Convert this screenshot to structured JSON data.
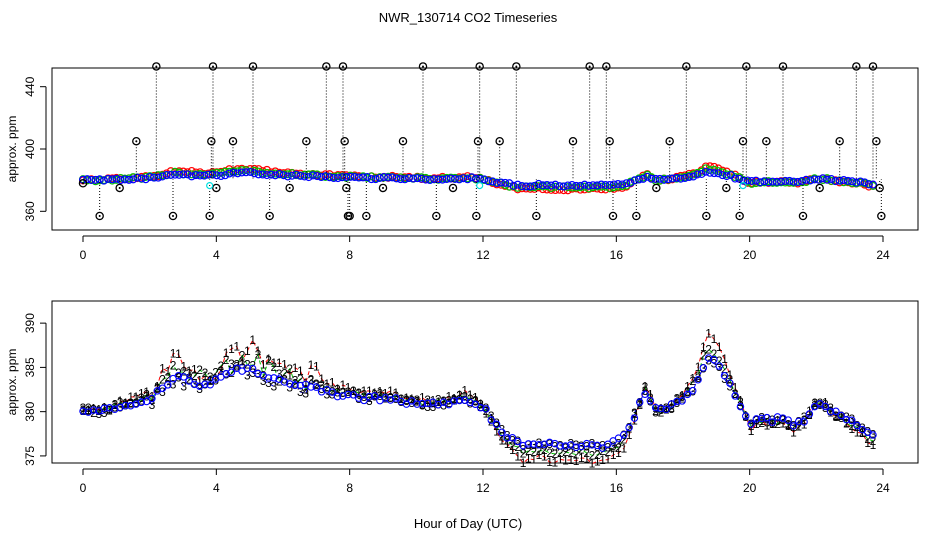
{
  "chart_data": {
    "title": "NWR_130714  CO2 Timeseries",
    "xlabel": "Hour of Day (UTC)",
    "colors": {
      "series1": "#ff0000",
      "series2": "#00c000",
      "series3": "#0000ff",
      "outlier": "#000000",
      "cyan": "#00e0e0"
    },
    "panels": [
      {
        "type": "scatter",
        "ylabel": "approx. ppm",
        "xlim": [
          0,
          24
        ],
        "ylim": [
          348,
          452
        ],
        "x_ticks": [
          "0",
          "4",
          "8",
          "12",
          "16",
          "20",
          "24"
        ],
        "y_ticks": [
          "360",
          "400",
          "440"
        ],
        "outlier_points": [
          [
            0.0,
            378
          ],
          [
            0.5,
            357
          ],
          [
            1.1,
            375
          ],
          [
            1.6,
            405
          ],
          [
            2.2,
            453
          ],
          [
            2.7,
            357
          ],
          [
            3.8,
            357
          ],
          [
            3.85,
            405
          ],
          [
            3.9,
            453
          ],
          [
            4.0,
            375
          ],
          [
            4.5,
            405
          ],
          [
            5.1,
            453
          ],
          [
            5.6,
            357
          ],
          [
            6.2,
            375
          ],
          [
            6.7,
            405
          ],
          [
            7.3,
            453
          ],
          [
            7.8,
            453
          ],
          [
            7.85,
            405
          ],
          [
            7.9,
            375
          ],
          [
            7.95,
            357
          ],
          [
            8.0,
            357
          ],
          [
            8.5,
            357
          ],
          [
            9.0,
            375
          ],
          [
            9.6,
            405
          ],
          [
            10.2,
            453
          ],
          [
            10.6,
            357
          ],
          [
            11.1,
            375
          ],
          [
            11.8,
            357
          ],
          [
            11.85,
            405
          ],
          [
            11.9,
            453
          ],
          [
            12.5,
            405
          ],
          [
            13.0,
            453
          ],
          [
            13.6,
            357
          ],
          [
            14.7,
            405
          ],
          [
            15.2,
            453
          ],
          [
            15.7,
            453
          ],
          [
            15.8,
            405
          ],
          [
            15.9,
            357
          ],
          [
            16.6,
            357
          ],
          [
            17.2,
            375
          ],
          [
            17.6,
            405
          ],
          [
            18.1,
            453
          ],
          [
            18.7,
            357
          ],
          [
            19.3,
            375
          ],
          [
            19.7,
            357
          ],
          [
            19.8,
            405
          ],
          [
            19.9,
            453
          ],
          [
            20.5,
            405
          ],
          [
            21.0,
            453
          ],
          [
            21.6,
            357
          ],
          [
            22.1,
            375
          ],
          [
            22.7,
            405
          ],
          [
            23.2,
            453
          ],
          [
            23.7,
            453
          ],
          [
            23.8,
            405
          ],
          [
            23.9,
            375
          ],
          [
            23.95,
            357
          ]
        ]
      },
      {
        "type": "line",
        "ylabel": "approx. ppm",
        "xlim": [
          0,
          24
        ],
        "ylim": [
          374.2,
          392.5
        ],
        "x_ticks": [
          "0",
          "4",
          "8",
          "12",
          "16",
          "20",
          "24"
        ],
        "y_ticks": [
          "375",
          "380",
          "385",
          "390"
        ],
        "series": [
          {
            "name": "1",
            "marker": "1",
            "color": "#ff0000"
          },
          {
            "name": "2",
            "marker": "2",
            "color": "#00c000"
          },
          {
            "name": "3",
            "marker": "3",
            "color": "#0000ff"
          }
        ]
      }
    ],
    "base_curve": [
      [
        0.0,
        380.2
      ],
      [
        0.5,
        380.0
      ],
      [
        1.0,
        380.5
      ],
      [
        1.5,
        381.0
      ],
      [
        2.0,
        381.5
      ],
      [
        2.4,
        382.5
      ],
      [
        2.8,
        384.0
      ],
      [
        3.2,
        383.5
      ],
      [
        3.6,
        383.0
      ],
      [
        4.0,
        383.5
      ],
      [
        4.5,
        384.5
      ],
      [
        5.0,
        385.0
      ],
      [
        5.5,
        384.0
      ],
      [
        6.0,
        383.5
      ],
      [
        6.5,
        383.0
      ],
      [
        7.0,
        382.5
      ],
      [
        7.5,
        382.0
      ],
      [
        8.0,
        381.8
      ],
      [
        8.5,
        381.5
      ],
      [
        9.0,
        381.5
      ],
      [
        9.5,
        381.2
      ],
      [
        10.0,
        381.0
      ],
      [
        10.5,
        380.8
      ],
      [
        11.0,
        381.0
      ],
      [
        11.5,
        381.5
      ],
      [
        12.0,
        380.5
      ],
      [
        12.4,
        378.5
      ],
      [
        12.8,
        377.0
      ],
      [
        13.2,
        376.0
      ],
      [
        13.6,
        376.5
      ],
      [
        14.0,
        376.3
      ],
      [
        14.5,
        376.0
      ],
      [
        15.0,
        376.3
      ],
      [
        15.5,
        376.0
      ],
      [
        16.0,
        376.5
      ],
      [
        16.3,
        377.5
      ],
      [
        16.6,
        380.0
      ],
      [
        16.9,
        382.5
      ],
      [
        17.2,
        380.0
      ],
      [
        17.6,
        380.5
      ],
      [
        18.0,
        381.5
      ],
      [
        18.4,
        383.0
      ],
      [
        18.7,
        386.0
      ],
      [
        19.0,
        385.5
      ],
      [
        19.4,
        383.0
      ],
      [
        19.7,
        381.0
      ],
      [
        20.0,
        378.5
      ],
      [
        20.3,
        379.2
      ],
      [
        20.7,
        379.0
      ],
      [
        21.0,
        379.3
      ],
      [
        21.3,
        378.5
      ],
      [
        21.6,
        379.0
      ],
      [
        22.0,
        380.8
      ],
      [
        22.3,
        380.5
      ],
      [
        22.7,
        379.5
      ],
      [
        23.0,
        379.0
      ],
      [
        23.3,
        378.5
      ],
      [
        23.6,
        377.5
      ]
    ]
  }
}
